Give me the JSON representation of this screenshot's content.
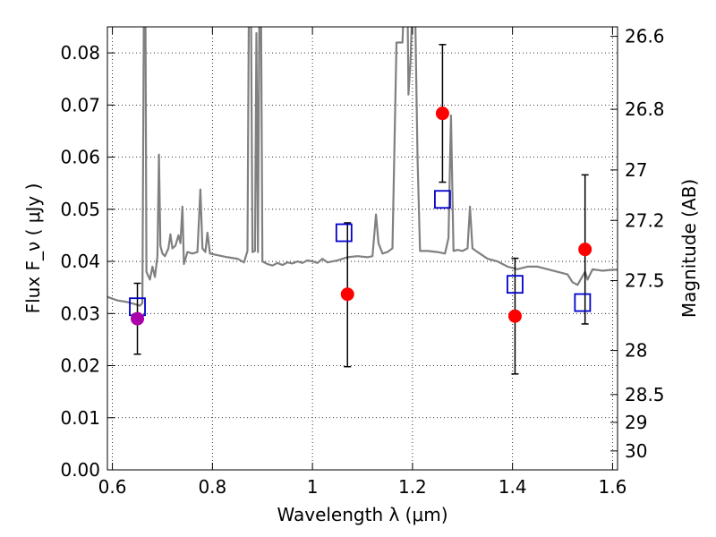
{
  "chart_data": {
    "type": "scatter",
    "xlabel": "Wavelength  λ (μm)",
    "ylabel": "Flux  F_ν  ( μJy )",
    "y2label": "Magnitude (AB)",
    "xlim": [
      0.59,
      1.61
    ],
    "ylim": [
      0.0,
      0.085
    ],
    "grid": true,
    "x_ticks": [
      0.6,
      0.8,
      1.0,
      1.2,
      1.4,
      1.6
    ],
    "x_tick_labels": [
      "0.6",
      "0.8",
      "1",
      "1.2",
      "1.4",
      "1.6"
    ],
    "y_ticks": [
      0.0,
      0.01,
      0.02,
      0.03,
      0.04,
      0.05,
      0.06,
      0.07,
      0.08
    ],
    "y_tick_labels": [
      "0.00",
      "0.01",
      "0.02",
      "0.03",
      "0.04",
      "0.05",
      "0.06",
      "0.07",
      "0.08"
    ],
    "mag_ticks": [
      26.6,
      26.8,
      27.0,
      27.2,
      27.5,
      28.0,
      28.5,
      29.0,
      30.0
    ],
    "mag_tick_labels": [
      "26.6",
      "26.8",
      "27",
      "27.2",
      "27.5",
      "28",
      "28.5",
      "29",
      "30"
    ],
    "series": [
      {
        "kind": "line",
        "color": "#808080",
        "points": [
          [
            0.59,
            0.0332
          ],
          [
            0.61,
            0.0325
          ],
          [
            0.63,
            0.0322
          ],
          [
            0.645,
            0.0318
          ],
          [
            0.655,
            0.0315
          ],
          [
            0.66,
            0.032
          ],
          [
            0.663,
            0.09
          ],
          [
            0.666,
            0.09
          ],
          [
            0.668,
            0.038
          ],
          [
            0.675,
            0.0365
          ],
          [
            0.68,
            0.039
          ],
          [
            0.685,
            0.037
          ],
          [
            0.69,
            0.041
          ],
          [
            0.693,
            0.0605
          ],
          [
            0.696,
            0.043
          ],
          [
            0.7,
            0.0415
          ],
          [
            0.705,
            0.041
          ],
          [
            0.712,
            0.0425
          ],
          [
            0.716,
            0.0452
          ],
          [
            0.72,
            0.0425
          ],
          [
            0.726,
            0.043
          ],
          [
            0.732,
            0.045
          ],
          [
            0.736,
            0.0435
          ],
          [
            0.74,
            0.0505
          ],
          [
            0.743,
            0.0395
          ],
          [
            0.75,
            0.0418
          ],
          [
            0.76,
            0.0415
          ],
          [
            0.77,
            0.0418
          ],
          [
            0.776,
            0.0538
          ],
          [
            0.78,
            0.0425
          ],
          [
            0.786,
            0.0418
          ],
          [
            0.79,
            0.0455
          ],
          [
            0.795,
            0.0415
          ],
          [
            0.81,
            0.0412
          ],
          [
            0.83,
            0.0408
          ],
          [
            0.85,
            0.0405
          ],
          [
            0.863,
            0.0398
          ],
          [
            0.87,
            0.042
          ],
          [
            0.873,
            0.09
          ],
          [
            0.877,
            0.09
          ],
          [
            0.88,
            0.0418
          ],
          [
            0.885,
            0.042
          ],
          [
            0.888,
            0.0838
          ],
          [
            0.891,
            0.0418
          ],
          [
            0.894,
            0.09
          ],
          [
            0.897,
            0.09
          ],
          [
            0.9,
            0.04
          ],
          [
            0.91,
            0.0395
          ],
          [
            0.92,
            0.0392
          ],
          [
            0.93,
            0.0397
          ],
          [
            0.94,
            0.0393
          ],
          [
            0.95,
            0.0398
          ],
          [
            0.96,
            0.0396
          ],
          [
            0.97,
            0.04
          ],
          [
            0.98,
            0.0397
          ],
          [
            0.99,
            0.0402
          ],
          [
            1.0,
            0.04
          ],
          [
            1.01,
            0.0397
          ],
          [
            1.02,
            0.0405
          ],
          [
            1.03,
            0.0398
          ],
          [
            1.05,
            0.0402
          ],
          [
            1.07,
            0.0408
          ],
          [
            1.09,
            0.041
          ],
          [
            1.11,
            0.0408
          ],
          [
            1.12,
            0.041
          ],
          [
            1.127,
            0.049
          ],
          [
            1.132,
            0.0435
          ],
          [
            1.14,
            0.0415
          ],
          [
            1.15,
            0.0418
          ],
          [
            1.16,
            0.0425
          ],
          [
            1.168,
            0.082
          ],
          [
            1.175,
            0.082
          ],
          [
            1.18,
            0.082
          ],
          [
            1.183,
            0.09
          ],
          [
            1.19,
            0.09
          ],
          [
            1.192,
            0.072
          ],
          [
            1.196,
            0.078
          ],
          [
            1.2,
            0.09
          ],
          [
            1.205,
            0.09
          ],
          [
            1.21,
            0.06
          ],
          [
            1.215,
            0.042
          ],
          [
            1.23,
            0.042
          ],
          [
            1.25,
            0.0418
          ],
          [
            1.265,
            0.0415
          ],
          [
            1.272,
            0.0445
          ],
          [
            1.277,
            0.068
          ],
          [
            1.282,
            0.042
          ],
          [
            1.29,
            0.0422
          ],
          [
            1.3,
            0.042
          ],
          [
            1.31,
            0.0425
          ],
          [
            1.315,
            0.0505
          ],
          [
            1.32,
            0.0425
          ],
          [
            1.33,
            0.0418
          ],
          [
            1.35,
            0.0405
          ],
          [
            1.37,
            0.04
          ],
          [
            1.39,
            0.039
          ],
          [
            1.41,
            0.0385
          ],
          [
            1.43,
            0.039
          ],
          [
            1.45,
            0.039
          ],
          [
            1.47,
            0.0385
          ],
          [
            1.49,
            0.038
          ],
          [
            1.51,
            0.0375
          ],
          [
            1.52,
            0.036
          ],
          [
            1.53,
            0.0355
          ],
          [
            1.545,
            0.038
          ],
          [
            1.55,
            0.0365
          ],
          [
            1.56,
            0.0385
          ],
          [
            1.58,
            0.0382
          ],
          [
            1.6,
            0.0384
          ],
          [
            1.61,
            0.0384
          ]
        ]
      },
      {
        "kind": "markers",
        "marker": "square",
        "color": "#0000cc",
        "x": [
          0.65,
          1.063,
          1.26,
          1.405,
          1.54
        ],
        "y": [
          0.0313,
          0.0455,
          0.0519,
          0.0356,
          0.0321
        ]
      },
      {
        "kind": "markers",
        "marker": "circle",
        "color": "#ff0000",
        "x": [
          1.07,
          1.26,
          1.405,
          1.545
        ],
        "y": [
          0.0337,
          0.0684,
          0.0295,
          0.0423
        ],
        "yerr": [
          [
            0.0337,
            0.0139,
            0.0137
          ],
          [
            0.0684,
            0.0132,
            0.0132
          ],
          [
            0.0295,
            0.0111,
            0.0111
          ],
          [
            0.0423,
            0.0143,
            0.0143
          ]
        ]
      },
      {
        "kind": "markers",
        "marker": "circle",
        "color": "#aa00aa",
        "x": [
          0.65
        ],
        "y": [
          0.029
        ],
        "yerr": [
          [
            0.029,
            0.0068,
            0.0068
          ]
        ]
      }
    ]
  }
}
